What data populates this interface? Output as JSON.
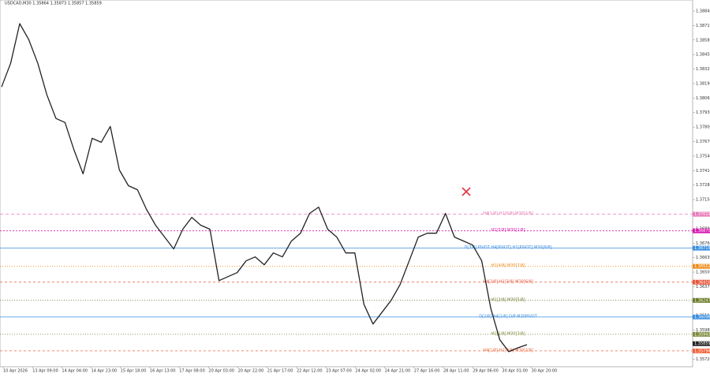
{
  "chart_data": {
    "type": "line",
    "title": "USDCAD,M30  1.35864 1.35873 1.35857 1.35859",
    "x_labels": [
      "10 Apr 2026",
      "13 Apr 09:00",
      "14 Apr 04:00",
      "14 Apr 23:00",
      "15 Apr 18:00",
      "16 Apr 13:00",
      "17 Apr 08:00",
      "20 Apr 03:00",
      "20 Apr 22:00",
      "21 Apr 17:00",
      "22 Apr 12:00",
      "23 Apr 07:00",
      "24 Apr 02:00",
      "24 Apr 21:00",
      "27 Apr 16:00",
      "28 Apr 11:00",
      "29 Apr 06:00",
      "30 Apr 01:00",
      "30 Apr 20:00"
    ],
    "series": [
      {
        "name": "USDCAD,M30",
        "color": "#222222",
        "values": [
          1.3816,
          1.38372,
          1.38727,
          1.38585,
          1.38372,
          1.38089,
          1.37877,
          1.37841,
          1.37593,
          1.37381,
          1.37699,
          1.37664,
          1.37806,
          1.37416,
          1.37274,
          1.37239,
          1.37062,
          1.3692,
          1.36814,
          1.36708,
          1.36885,
          1.36991,
          1.3692,
          1.36885,
          1.36424,
          1.3646,
          1.36495,
          1.36601,
          1.36637,
          1.36566,
          1.36672,
          1.36637,
          1.36779,
          1.36849,
          1.37026,
          1.37083,
          1.36885,
          1.36814,
          1.36672,
          1.36672,
          1.36212,
          1.36035,
          1.36141,
          1.36247,
          1.36389,
          1.36601,
          1.36814,
          1.36849,
          1.36849,
          1.37026,
          1.36814,
          1.36779,
          1.36743,
          1.36601,
          1.36176,
          1.35893,
          1.35787,
          1.35822,
          1.3585
        ]
      }
    ],
    "ylim": [
      1.35652,
      1.38939
    ],
    "yticks": [
      {
        "value": 1.3884,
        "label": "1.38840"
      },
      {
        "value": 1.3871,
        "label": "1.38710"
      },
      {
        "value": 1.3858,
        "label": "1.38580"
      },
      {
        "value": 1.3845,
        "label": "1.38450"
      },
      {
        "value": 1.3832,
        "label": "1.38320"
      },
      {
        "value": 1.3819,
        "label": "1.38190"
      },
      {
        "value": 1.3806,
        "label": "1.38060"
      },
      {
        "value": 1.3793,
        "label": "1.37930"
      },
      {
        "value": 1.378,
        "label": "1.37800"
      },
      {
        "value": 1.3767,
        "label": "1.37670"
      },
      {
        "value": 1.3754,
        "label": "1.37540"
      },
      {
        "value": 1.3741,
        "label": "1.37410"
      },
      {
        "value": 1.3728,
        "label": "1.37280"
      },
      {
        "value": 1.3715,
        "label": "1.37150"
      },
      {
        "value": 1.3702,
        "label": "1.37020"
      },
      {
        "value": 1.3689,
        "label": "1.36890"
      },
      {
        "value": 1.3676,
        "label": "1.36760"
      },
      {
        "value": 1.3663,
        "label": "1.36630"
      },
      {
        "value": 1.365,
        "label": "1.36500"
      },
      {
        "value": 1.3637,
        "label": "1.36370"
      },
      {
        "value": 1.3624,
        "label": "1.36240"
      },
      {
        "value": 1.3611,
        "label": "1.36110"
      },
      {
        "value": 1.3598,
        "label": "1.35980"
      },
      {
        "value": 1.3585,
        "label": "1.35850"
      },
      {
        "value": 1.3572,
        "label": "1.35720"
      }
    ],
    "levels": [
      {
        "name": "H4[1/8] H1[6/8] M30[2/8]",
        "value": 1.37019,
        "price_label": "1.37019",
        "color": "#e879b8",
        "dash": "4,3"
      },
      {
        "name": "H1[5/8] M30[1/8]",
        "value": 1.3687,
        "price_label": "1.36870",
        "color": "#d81bb0",
        "dash": "2,2"
      },
      {
        "name": "D[3/8] PIVOT H4[PIVOT] H1[PIVOT] M30[8/8]",
        "value": 1.36715,
        "price_label": "1.36715",
        "color": "#3b8fe0",
        "dash": "none"
      },
      {
        "name": "H1[4/8] M30[7/8]",
        "value": 1.36552,
        "price_label": "1.36552",
        "color": "#f08c1c",
        "dash": "1,2"
      },
      {
        "name": "H4[2/8] H1[3/8] M30[6/8]",
        "value": 1.3641,
        "price_label": "1.36410",
        "color": "#e8563a",
        "dash": "3,3"
      },
      {
        "name": "H1[2/8] M30[5/8]",
        "value": 1.36247,
        "price_label": "1.36247",
        "color": "#6b7b2a",
        "dash": "1,2"
      },
      {
        "name": "D[2/8] H4[1/8] D/P M30PIVOT",
        "value": 1.36098,
        "price_label": "1.36098",
        "color": "#3b8fe0",
        "dash": "none"
      },
      {
        "name": "H1[1/8] M30[3/8]",
        "value": 1.35943,
        "price_label": "1.35943",
        "color": "#7b8b3a",
        "dash": "1,2"
      },
      {
        "name": "H4[1/8] H1[0/8] M30[2/8]",
        "value": 1.35794,
        "price_label": "1.35794",
        "color": "#f0643c",
        "dash": "3,3"
      }
    ],
    "current_price": {
      "value": 1.35859,
      "price_label": "1.35859",
      "color": "#222222"
    }
  }
}
